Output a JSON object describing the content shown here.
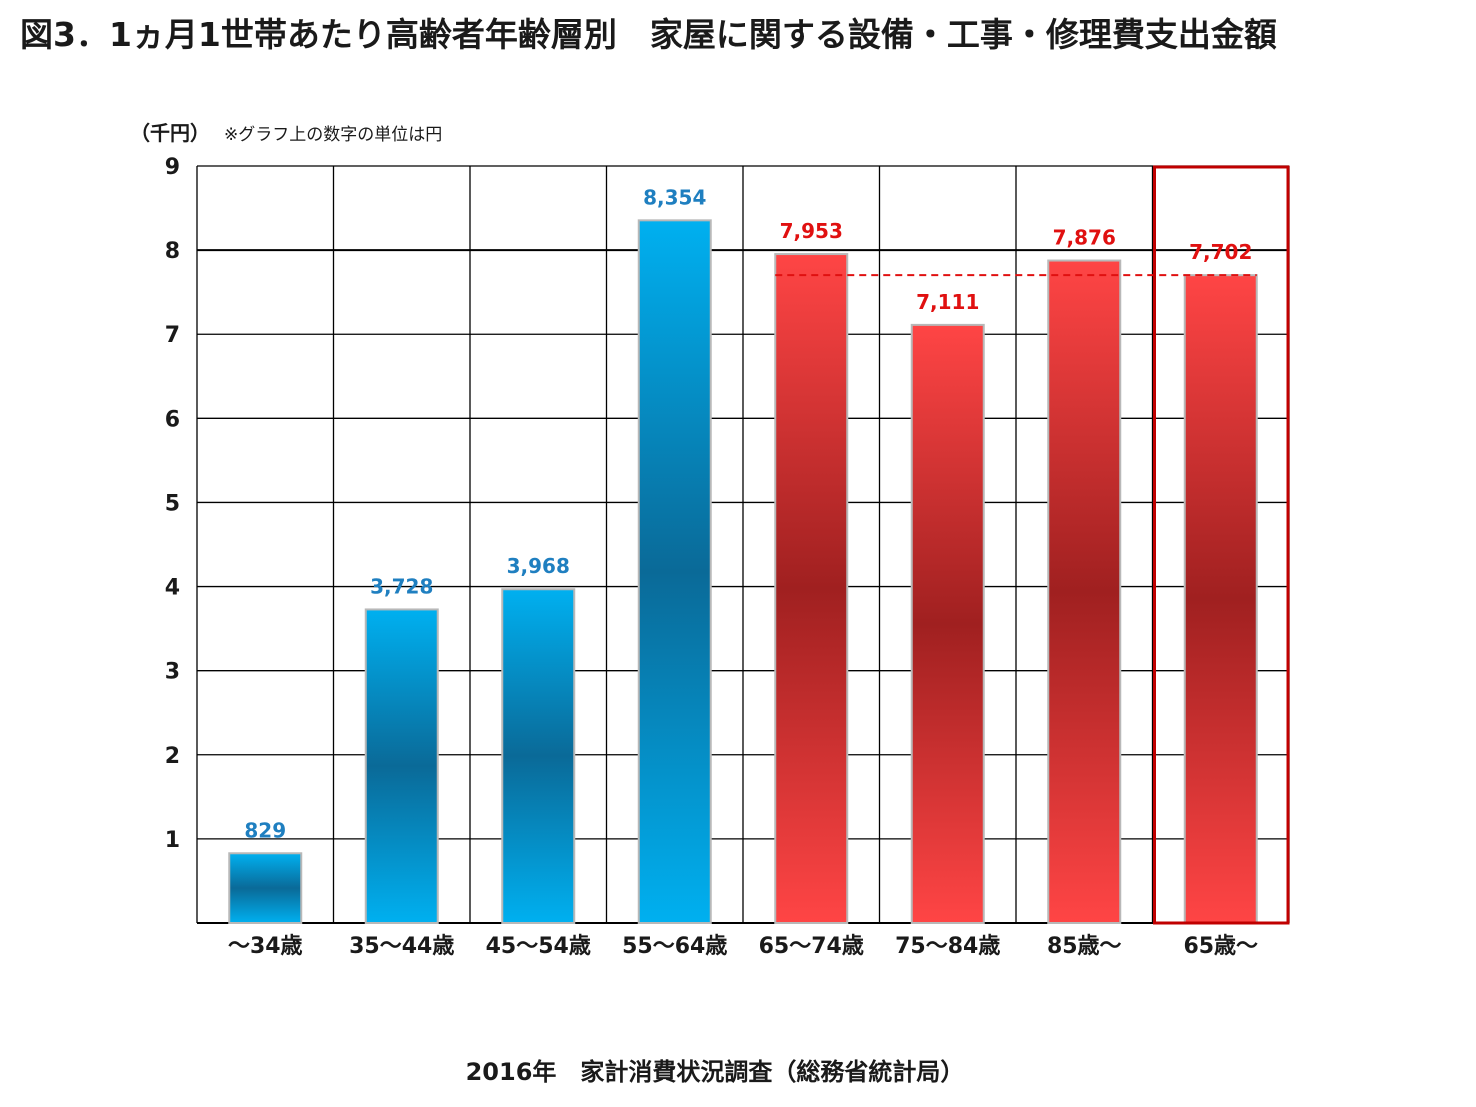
{
  "title": "図3．1ヵ月1世帯あたり高齢者年齢層別　家屋に関する設備・工事・修理費支出金額",
  "unit_label": "（千円）",
  "unit_note": "※グラフ上の数字の単位は円",
  "source": "2016年　家計消費状況調査（総務省統計局）",
  "colors": {
    "blue_light": "#00b0f0",
    "blue_dark": "#0a6a98",
    "red_light": "#ff4545",
    "red_dark": "#a02020",
    "label_blue": "#1f7fc0",
    "label_red": "#e01010",
    "highlight_box": "#c00000"
  },
  "chart_data": {
    "type": "bar",
    "categories": [
      "～34歳",
      "35～44歳",
      "45～54歳",
      "55～64歳",
      "65～74歳",
      "75～84歳",
      "85歳～",
      "65歳～"
    ],
    "values": [
      829,
      3728,
      3968,
      8354,
      7953,
      7111,
      7876,
      7702
    ],
    "value_labels": [
      "829",
      "3,728",
      "3,968",
      "8,354",
      "7,953",
      "7,111",
      "7,876",
      "7,702"
    ],
    "bar_colors": [
      "blue",
      "blue",
      "blue",
      "blue",
      "red",
      "red",
      "red",
      "red"
    ],
    "y_unit": "千円",
    "ylim": [
      0,
      9
    ],
    "yticks": [
      "1",
      "2",
      "3",
      "4",
      "5",
      "6",
      "7",
      "8",
      "9"
    ],
    "grid": true,
    "reference_line": {
      "value": 7702,
      "style": "dashed",
      "color": "red"
    },
    "highlighted_category": "65歳～"
  }
}
